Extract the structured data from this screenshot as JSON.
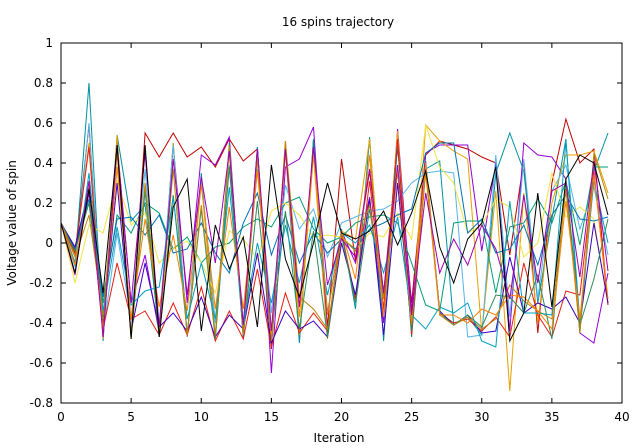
{
  "chart_data": {
    "type": "line",
    "title": "16 spins trajectory",
    "xlabel": "Iteration",
    "ylabel": "Voltage value of spin",
    "xlim": [
      0,
      40
    ],
    "ylim": [
      -0.8,
      1.0
    ],
    "grid": false,
    "legend": "none",
    "x_ticks": [
      "0",
      "5",
      "10",
      "15",
      "20",
      "25",
      "30",
      "35",
      "40"
    ],
    "y_ticks": [
      "-0.8",
      "-0.6",
      "-0.4",
      "-0.2",
      "0",
      "0.2",
      "0.4",
      "0.6",
      "0.8",
      "1"
    ],
    "x": [
      0,
      1,
      2,
      3,
      4,
      5,
      6,
      7,
      8,
      9,
      10,
      11,
      12,
      13,
      14,
      15,
      16,
      17,
      18,
      19,
      20,
      21,
      22,
      23,
      24,
      25,
      26,
      27,
      28,
      29,
      30,
      31,
      32,
      33,
      34,
      35,
      36,
      37,
      38,
      39
    ],
    "series": [
      {
        "color": "#c00000",
        "values": [
          0.1,
          -0.06,
          0.59,
          -0.48,
          0.5,
          -0.47,
          0.55,
          0.43,
          0.55,
          0.43,
          0.48,
          0.38,
          0.52,
          0.41,
          0.47,
          -0.53,
          0.49,
          -0.49,
          0.52,
          -0.42,
          0.42,
          -0.09,
          0.36,
          -0.25,
          0.48,
          -0.3,
          0.44,
          0.51,
          0.49,
          0.47,
          0.43,
          0.4,
          -0.06,
          0.41,
          -0.45,
          0.3,
          0.62,
          0.4,
          0.47,
          -0.31
        ]
      },
      {
        "color": "#9400d3",
        "values": [
          0.1,
          -0.1,
          0.25,
          -0.44,
          0.5,
          -0.3,
          -0.06,
          -0.45,
          0.49,
          -0.3,
          0.44,
          0.39,
          0.53,
          -0.48,
          0.48,
          -0.65,
          0.38,
          0.42,
          0.58,
          -0.45,
          0.06,
          -0.1,
          0.23,
          -0.4,
          0.57,
          -0.34,
          0.45,
          0.49,
          0.49,
          0.49,
          -0.04,
          0.4,
          -0.44,
          0.5,
          0.44,
          0.43,
          0.32,
          -0.45,
          -0.5,
          -0.15
        ]
      },
      {
        "color": "#0090a0",
        "values": [
          0.1,
          -0.1,
          0.8,
          -0.49,
          0.54,
          0.11,
          0.19,
          -0.46,
          0.5,
          -0.47,
          0.35,
          -0.47,
          0.5,
          -0.47,
          0.48,
          -0.52,
          0.47,
          -0.5,
          0.52,
          -0.35,
          0.07,
          -0.33,
          0.53,
          -0.49,
          0.5,
          -0.47,
          0.37,
          0.41,
          -0.41,
          -0.37,
          -0.46,
          0.35,
          0.55,
          0.36,
          -0.3,
          0.12,
          0.52,
          -0.45,
          0.36,
          0.55
        ]
      },
      {
        "color": "#e6a000",
        "values": [
          0.1,
          -0.06,
          0.5,
          -0.48,
          0.54,
          -0.48,
          0.29,
          -0.44,
          0.5,
          -0.47,
          0.31,
          -0.48,
          0.46,
          -0.45,
          0.45,
          -0.51,
          0.51,
          -0.46,
          0.44,
          -0.48,
          0.06,
          0.02,
          0.52,
          -0.36,
          0.56,
          -0.45,
          0.59,
          0.51,
          0.46,
          0.42,
          -0.45,
          0.26,
          -0.74,
          0.25,
          -0.4,
          0.2,
          0.44,
          0.44,
          0.46,
          0.25
        ]
      },
      {
        "color": "#56b4e9",
        "values": [
          0.1,
          -0.12,
          0.6,
          -0.45,
          0.05,
          -0.38,
          0.37,
          -0.41,
          0.49,
          -0.47,
          0.33,
          -0.4,
          0.39,
          -0.4,
          0.37,
          -0.35,
          0.29,
          0.07,
          0.17,
          -0.07,
          0.1,
          0.13,
          0.16,
          0.17,
          0.21,
          0.3,
          0.35,
          0.36,
          0.35,
          -0.47,
          -0.46,
          0.44,
          -0.37,
          0.42,
          -0.28,
          0.26,
          0.39,
          0.07,
          0.28,
          -0.06
        ]
      },
      {
        "color": "#009e73",
        "values": [
          0.1,
          -0.04,
          0.28,
          -0.3,
          0.14,
          0.05,
          0.2,
          0.15,
          -0.03,
          0.03,
          -0.1,
          -0.02,
          0.0,
          0.08,
          0.12,
          0.08,
          0.2,
          0.23,
          0.07,
          0.0,
          0.03,
          0.1,
          0.13,
          0.14,
          0.1,
          -0.1,
          -0.31,
          -0.34,
          0.1,
          0.11,
          0.11,
          -0.25,
          0.08,
          0.1,
          0.22,
          0.1,
          0.31,
          -0.01,
          0.38,
          0.38
        ]
      },
      {
        "color": "#f0e442",
        "values": [
          0.1,
          -0.2,
          0.09,
          0.05,
          0.31,
          0.09,
          0.15,
          -0.1,
          -0.03,
          0.01,
          -0.1,
          -0.25,
          0.06,
          0.02,
          -0.08,
          0.16,
          0.2,
          0.14,
          0.03,
          0.04,
          0.03,
          -0.03,
          0.05,
          0.03,
          0.15,
          0.02,
          0.59,
          0.38,
          0.3,
          0.05,
          0.09,
          0.22,
          0.18,
          -0.07,
          0.0,
          0.35,
          0.13,
          0.18,
          0.12,
          -0.31
        ]
      },
      {
        "color": "#0072b2",
        "values": [
          0.1,
          -0.03,
          0.22,
          -0.27,
          0.12,
          0.13,
          0.04,
          0.14,
          -0.05,
          -0.03,
          0.1,
          -0.05,
          -0.15,
          0.1,
          0.25,
          -0.06,
          0.14,
          -0.1,
          0.05,
          -0.05,
          0.02,
          -0.03,
          0.07,
          0.1,
          0.14,
          0.17,
          0.45,
          0.5,
          0.5,
          0.05,
          0.12,
          -0.05,
          -0.03,
          0.09,
          -0.11,
          0.14,
          0.24,
          0.12,
          0.11,
          0.13
        ]
      },
      {
        "color": "#e51e10",
        "values": [
          0.1,
          -0.05,
          0.48,
          -0.43,
          -0.1,
          -0.38,
          -0.34,
          -0.46,
          -0.3,
          -0.46,
          -0.22,
          -0.49,
          -0.34,
          -0.48,
          -0.13,
          -0.52,
          -0.25,
          -0.45,
          -0.35,
          -0.44,
          0.05,
          -0.28,
          0.31,
          -0.33,
          0.52,
          -0.46,
          0.37,
          -0.35,
          -0.4,
          -0.38,
          -0.44,
          -0.37,
          -0.47,
          -0.1,
          -0.36,
          -0.47,
          -0.24,
          -0.26,
          0.36,
          -0.31
        ]
      },
      {
        "color": "#3a00c0",
        "values": [
          0.1,
          -0.02,
          0.27,
          -0.4,
          0.3,
          -0.44,
          -0.1,
          -0.42,
          -0.35,
          -0.44,
          -0.27,
          -0.47,
          -0.36,
          -0.43,
          -0.05,
          -0.5,
          -0.34,
          -0.43,
          -0.39,
          -0.47,
          0.0,
          -0.26,
          0.22,
          -0.46,
          0.3,
          -0.43,
          0.37,
          -0.34,
          -0.41,
          -0.36,
          -0.45,
          -0.44,
          -0.07,
          -0.35,
          -0.3,
          -0.33,
          -0.27,
          -0.4,
          0.1,
          -0.3
        ]
      },
      {
        "color": "#2e8b57",
        "values": [
          0.1,
          -0.04,
          0.2,
          -0.38,
          0.49,
          -0.47,
          0.26,
          -0.47,
          0.24,
          -0.45,
          0.17,
          -0.48,
          0.38,
          -0.46,
          0.21,
          -0.47,
          0.16,
          -0.43,
          0.06,
          -0.47,
          0.04,
          -0.3,
          0.17,
          -0.26,
          0.37,
          -0.44,
          0.41,
          -0.35,
          -0.41,
          -0.36,
          -0.42,
          -0.26,
          -0.27,
          -0.35,
          -0.16,
          -0.48,
          0.32,
          -0.41,
          -0.18,
          0.12
        ]
      },
      {
        "color": "#b8860b",
        "values": [
          0.1,
          -0.07,
          0.14,
          -0.36,
          0.45,
          -0.46,
          0.3,
          -0.44,
          0.37,
          -0.46,
          0.19,
          -0.46,
          0.49,
          -0.46,
          0.42,
          -0.49,
          0.51,
          -0.27,
          -0.33,
          -0.43,
          0.03,
          -0.04,
          0.19,
          -0.28,
          0.36,
          -0.41,
          0.35,
          -0.36,
          -0.41,
          -0.37,
          -0.43,
          -0.38,
          -0.21,
          -0.29,
          -0.34,
          -0.38,
          0.27,
          -0.45,
          0.45,
          0.22
        ]
      },
      {
        "color": "#00a0c0",
        "values": [
          0.1,
          -0.15,
          0.35,
          -0.34,
          0.08,
          -0.31,
          -0.24,
          -0.22,
          0.23,
          -0.38,
          -0.1,
          -0.38,
          0.28,
          -0.41,
          0.0,
          -0.3,
          0.09,
          -0.2,
          0.13,
          -0.26,
          0.05,
          0.0,
          0.09,
          -0.15,
          0.13,
          -0.36,
          -0.43,
          -0.32,
          -0.35,
          -0.3,
          -0.49,
          -0.52,
          0.21,
          -0.35,
          -0.35,
          -0.36,
          0.51,
          -0.39,
          0.31,
          0.0
        ]
      },
      {
        "color": "#ff8000",
        "values": [
          0.1,
          -0.11,
          0.28,
          -0.43,
          0.38,
          -0.38,
          0.12,
          -0.32,
          0.04,
          -0.34,
          0.29,
          -0.33,
          0.18,
          -0.33,
          0.36,
          -0.46,
          0.45,
          -0.37,
          0.47,
          -0.36,
          0.06,
          -0.18,
          0.44,
          -0.37,
          0.37,
          -0.39,
          0.4,
          -0.36,
          -0.36,
          -0.4,
          -0.33,
          -0.36,
          -0.26,
          -0.27,
          -0.34,
          -0.43,
          0.21,
          -0.38,
          0.34,
          -0.28
        ]
      },
      {
        "color": "#a000b0",
        "values": [
          0.1,
          -0.16,
          0.31,
          -0.47,
          0.49,
          -0.3,
          0.45,
          -0.42,
          0.42,
          -0.26,
          0.33,
          -0.1,
          0.46,
          -0.41,
          0.47,
          -0.44,
          0.47,
          -0.32,
          0.48,
          -0.21,
          0.02,
          -0.07,
          0.37,
          -0.25,
          0.39,
          -0.36,
          0.25,
          -0.15,
          0.02,
          -0.11,
          0.09,
          -0.03,
          -0.28,
          0.24,
          -0.2,
          0.26,
          0.3,
          -0.17,
          0.41,
          -0.14
        ]
      },
      {
        "color": "#000000",
        "values": [
          0.1,
          -0.15,
          0.27,
          -0.25,
          0.49,
          -0.48,
          0.49,
          -0.47,
          0.18,
          0.32,
          -0.44,
          0.09,
          -0.13,
          0.03,
          -0.42,
          0.39,
          -0.08,
          -0.27,
          0.0,
          0.3,
          0.05,
          0.02,
          0.06,
          0.16,
          -0.01,
          0.15,
          0.36,
          -0.02,
          -0.2,
          0.02,
          0.1,
          0.38,
          -0.49,
          -0.35,
          0.25,
          -0.32,
          0.32,
          0.44,
          0.4,
          0.14
        ]
      }
    ]
  }
}
